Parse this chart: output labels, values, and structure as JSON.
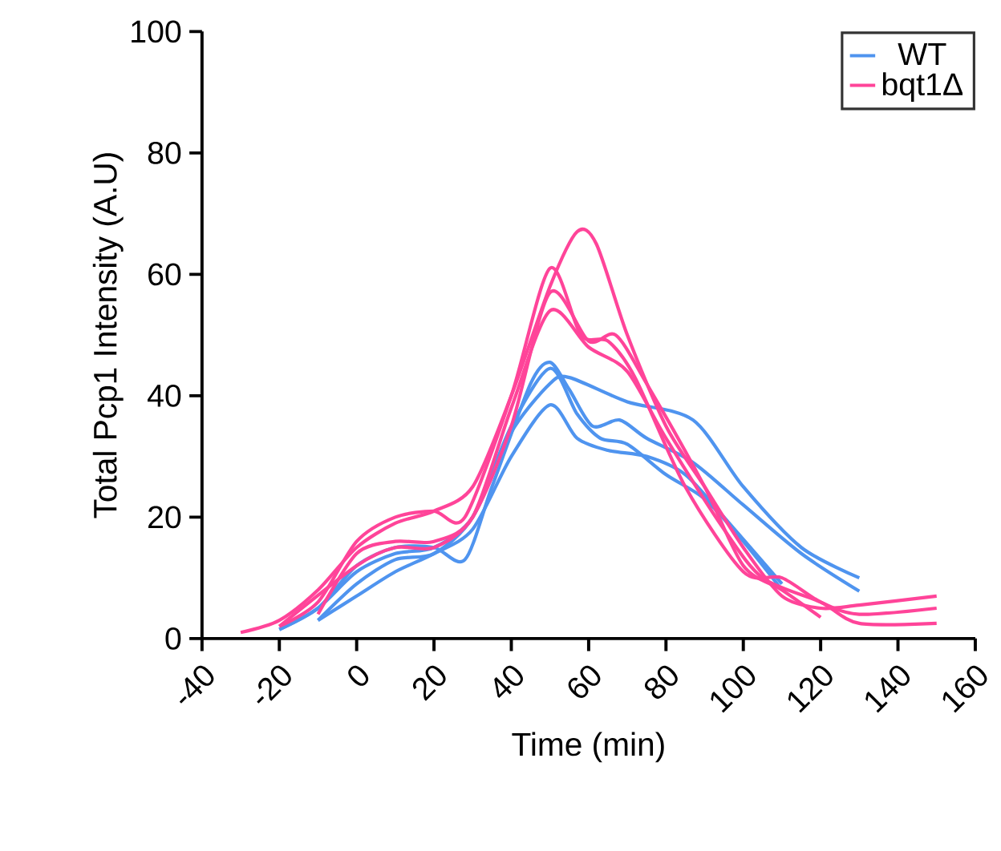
{
  "chart_data": {
    "type": "line",
    "xlabel": "Time (min)",
    "ylabel": "Total Pcp1 Intensity (A.U)",
    "xlim": [
      -40,
      160
    ],
    "ylim": [
      0,
      100
    ],
    "xticks": [
      -40,
      -20,
      0,
      20,
      40,
      60,
      80,
      100,
      120,
      140,
      160
    ],
    "yticks": [
      0,
      20,
      40,
      60,
      80,
      100
    ],
    "legend": "top right",
    "series": [
      {
        "name": "WT",
        "color": "#4f94ef",
        "x": [
          -20,
          -10,
          0,
          10,
          20,
          30,
          40,
          50,
          55,
          70,
          87,
          100,
          115,
          130
        ],
        "values": [
          1.5,
          5,
          11,
          14,
          15,
          20,
          34,
          42,
          43,
          39,
          36,
          25,
          15,
          10
        ]
      },
      {
        "color": "#4f94ef",
        "x": [
          -20,
          -10,
          0,
          10,
          20,
          28,
          35,
          45,
          50,
          55,
          61,
          68,
          75,
          87,
          100,
          115,
          130
        ],
        "values": [
          1.5,
          5,
          12,
          15,
          15,
          13,
          25,
          42,
          45.5,
          41,
          35,
          36,
          33,
          29,
          22,
          14,
          7.8
        ]
      },
      {
        "color": "#4f94ef",
        "x": [
          -10,
          0,
          10,
          20,
          30,
          40,
          50,
          57,
          63,
          70,
          80,
          90,
          100,
          110
        ],
        "values": [
          3,
          9,
          13,
          14,
          20,
          35,
          44.5,
          37,
          33,
          32,
          27,
          23,
          16,
          8
        ]
      },
      {
        "color": "#4f94ef",
        "x": [
          -10,
          0,
          10,
          20,
          30,
          40,
          50,
          57,
          65,
          75,
          85,
          95,
          110
        ],
        "values": [
          3,
          7,
          11,
          14,
          18,
          30,
          38.5,
          33,
          31,
          30,
          27,
          20,
          9
        ]
      },
      {
        "name": "bqt1Δ",
        "color": "#ff4499",
        "x": [
          -30,
          -20,
          -10,
          0,
          10,
          20,
          30,
          40,
          50,
          57,
          62,
          70,
          80,
          90,
          100,
          110,
          120,
          130,
          150
        ],
        "values": [
          1,
          3,
          8,
          15,
          19,
          21,
          25,
          40,
          58,
          67,
          65,
          50,
          35,
          25,
          15,
          7,
          5,
          5.5,
          7
        ]
      },
      {
        "color": "#ff4499",
        "x": [
          -20,
          -10,
          0,
          10,
          20,
          28,
          40,
          50,
          58,
          65,
          72,
          85,
          100,
          110,
          120,
          130,
          150
        ],
        "values": [
          2,
          6,
          16,
          20,
          21,
          20,
          40,
          61,
          50,
          49,
          43,
          25,
          11,
          10,
          6,
          4,
          5
        ]
      },
      {
        "color": "#ff4499",
        "x": [
          -20,
          0,
          10,
          20,
          30,
          40,
          50,
          60,
          67,
          75,
          90,
          100,
          110,
          120
        ],
        "values": [
          2,
          12,
          15,
          15,
          20,
          35,
          57,
          49,
          50,
          42,
          25,
          12,
          8,
          3.5
        ]
      },
      {
        "color": "#ff4499",
        "x": [
          -10,
          0,
          10,
          20,
          30,
          40,
          50,
          60,
          70,
          80,
          95,
          105,
          120,
          130,
          150
        ],
        "values": [
          4,
          14,
          16,
          16,
          20,
          38,
          54,
          48,
          44,
          33,
          18,
          10,
          6,
          2.5,
          2.5
        ]
      }
    ]
  }
}
